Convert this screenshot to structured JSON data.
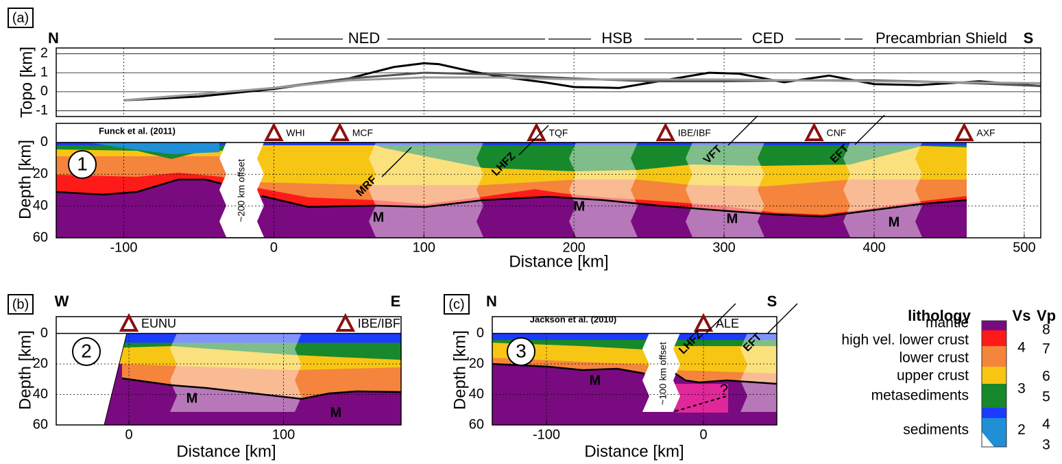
{
  "panels": [
    {
      "label": "(a)",
      "north": "N",
      "south": "S",
      "provinces": [
        "NED",
        "HSB",
        "CED",
        "Precambrian Shield"
      ],
      "topo": {
        "ylabel": "Topo [km]",
        "ylim": [
          -1.3,
          2.3
        ],
        "yticks": [
          -1,
          0,
          1,
          2
        ],
        "series": [
          {
            "color": "#000000",
            "x": [
              -100,
              -50,
              0,
              50,
              80,
              100,
              110,
              130,
              150,
              180,
              200,
              230,
              260,
              290,
              310,
              340,
              370,
              400,
              430,
              470,
              511
            ],
            "values": [
              -0.45,
              -0.25,
              0.15,
              0.7,
              1.3,
              1.5,
              1.45,
              1.1,
              0.8,
              0.5,
              0.25,
              0.2,
              0.6,
              1.0,
              0.95,
              0.5,
              0.85,
              0.4,
              0.35,
              0.55,
              0.3
            ]
          },
          {
            "color": "#555555",
            "x": [
              -100,
              0,
              50,
              100,
              150,
              200,
              250,
              300,
              350,
              400,
              450,
              511
            ],
            "values": [
              -0.45,
              0.2,
              0.7,
              1.0,
              0.9,
              0.7,
              0.55,
              0.55,
              0.6,
              0.6,
              0.5,
              0.3
            ]
          },
          {
            "color": "#9a9a9a",
            "x": [
              -100,
              0,
              50,
              100,
              150,
              200,
              300,
              400,
              511
            ],
            "values": [
              -0.45,
              0.2,
              0.6,
              0.75,
              0.75,
              0.65,
              0.65,
              0.55,
              0.45
            ]
          }
        ]
      },
      "section": {
        "source": "Funck et al. (2011)",
        "number": "1",
        "offset": "~200 km offset",
        "ylabel": "Depth [km]",
        "ylim": [
          -12,
          60
        ],
        "yticks": [
          0,
          20,
          40,
          60
        ],
        "xlabel": "Distance [km]",
        "xlim": [
          -145,
          511
        ],
        "xticks": [
          -100,
          0,
          100,
          200,
          300,
          400,
          500
        ],
        "stations": [
          {
            "name": "WHI",
            "x": 0
          },
          {
            "name": "MCF",
            "x": 44
          },
          {
            "name": "TQF",
            "x": 175
          },
          {
            "name": "IBE/IBF",
            "x": 261
          },
          {
            "name": "CNF",
            "x": 360
          },
          {
            "name": "AXF",
            "x": 460
          }
        ],
        "faults": [
          "MRF",
          "LHFZ",
          "VFT",
          "EFT"
        ],
        "moho_labels": [
          "M",
          "M",
          "M",
          "M"
        ]
      }
    },
    {
      "label": "(b)",
      "west": "W",
      "east": "E",
      "section": {
        "number": "2",
        "ylabel": "Depth [km]",
        "ylim": [
          -11,
          60
        ],
        "yticks": [
          0,
          20,
          40,
          60
        ],
        "xlabel": "Distance [km]",
        "xlim": [
          -47,
          176
        ],
        "xticks": [
          0,
          100
        ],
        "stations": [
          {
            "name": "EUNU",
            "x": 0
          },
          {
            "name": "IBE/IBF",
            "x": 140
          }
        ],
        "moho_labels": [
          "M",
          "M"
        ]
      }
    },
    {
      "label": "(c)",
      "north": "N",
      "south": "S",
      "section": {
        "source": "Jackson et al. (2010)",
        "number": "3",
        "offset": "~100 km offset",
        "ylabel": "Depth [km]",
        "ylim": [
          -11,
          60
        ],
        "yticks": [
          0,
          20,
          40,
          60
        ],
        "xlabel": "Distance [km]",
        "xlim": [
          -134.5,
          46.7
        ],
        "xticks": [
          -100,
          0
        ],
        "stations": [
          {
            "name": "ALE",
            "x": 0
          }
        ],
        "faults": [
          "LHFZ",
          "EFT"
        ],
        "moho_labels": [
          "M"
        ],
        "question": "?"
      }
    }
  ],
  "legend": {
    "title": "lithology",
    "vs_title": "Vs",
    "vp_title": "Vp",
    "units": [
      "mantle",
      "high vel. lower crust",
      "lower crust",
      "upper crust",
      "metasediments",
      "sediments"
    ],
    "vs": [
      4,
      3,
      2
    ],
    "vp": [
      8,
      7,
      6,
      5,
      4,
      3
    ]
  }
}
